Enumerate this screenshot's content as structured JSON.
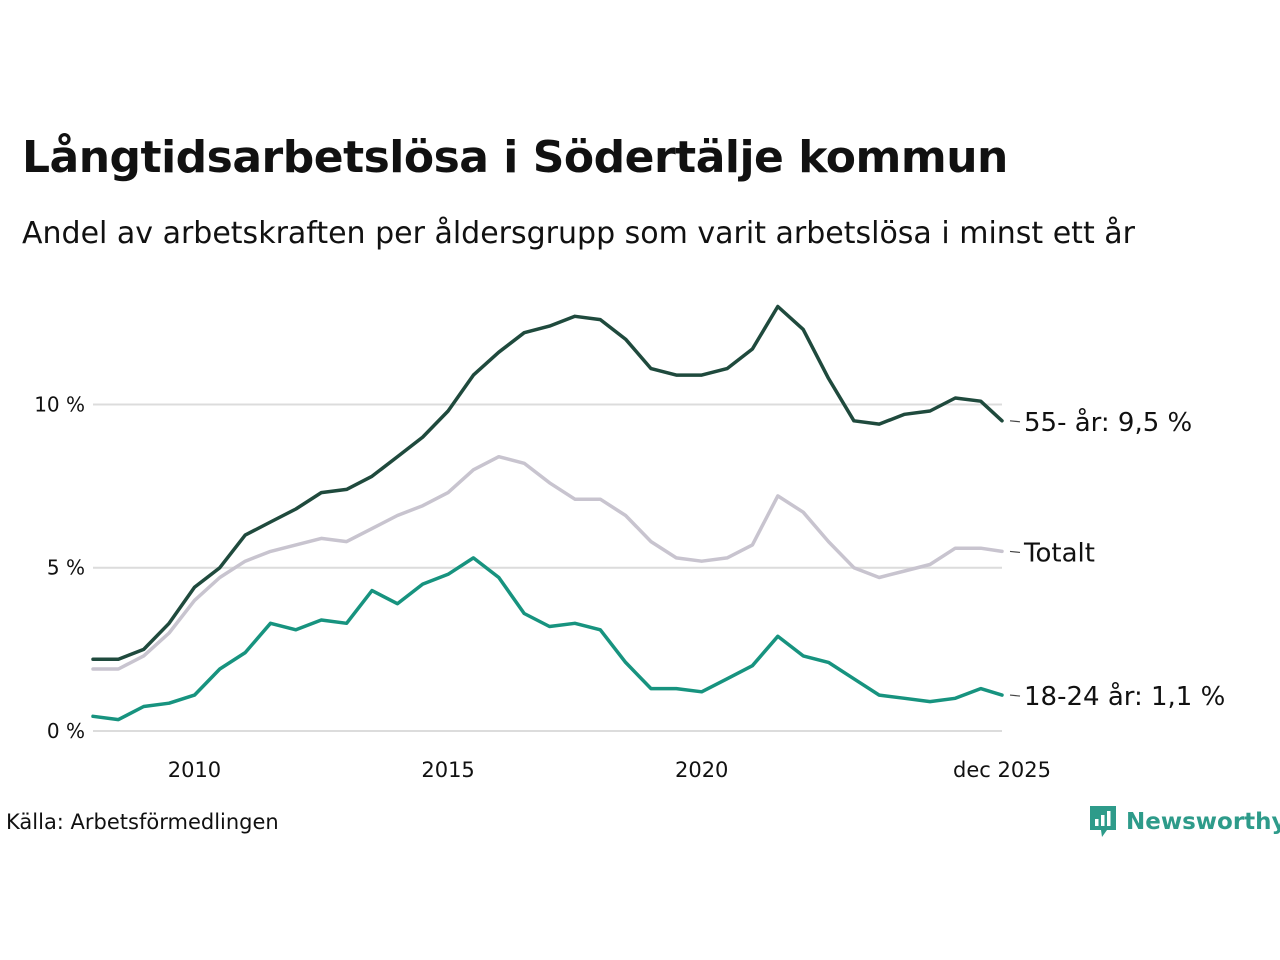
{
  "title": "Långtidsarbetslösa i Södertälje kommun",
  "subtitle": "Andel av arbetskraften per åldersgrupp som varit arbetslösa i minst ett år",
  "source": "Källa: Arbetsförmedlingen",
  "brand": "Newsworthy",
  "colors": {
    "brand": "#2e9b8a"
  },
  "chart_data": {
    "type": "line",
    "title": "Långtidsarbetslösa i Södertälje kommun",
    "xlabel": "",
    "ylabel": "",
    "xlim": [
      2008.0,
      2025.92
    ],
    "ylim": [
      0,
      13.2
    ],
    "y_ticks": [
      {
        "value": 0,
        "label": "0 %"
      },
      {
        "value": 5,
        "label": "5 %"
      },
      {
        "value": 10,
        "label": "10 %"
      }
    ],
    "x_ticks": [
      {
        "value": 2010,
        "label": "2010"
      },
      {
        "value": 2015,
        "label": "2015"
      },
      {
        "value": 2020,
        "label": "2020"
      },
      {
        "value": 2025.92,
        "label": "dec 2025"
      }
    ],
    "grid": "horizontal",
    "series": [
      {
        "name": "Totalt",
        "end_label": "Totalt",
        "color": "#c8c4cf",
        "x": [
          2008.0,
          2008.5,
          2009.0,
          2009.5,
          2010.0,
          2010.5,
          2011.0,
          2011.5,
          2012.0,
          2012.5,
          2013.0,
          2013.5,
          2014.0,
          2014.5,
          2015.0,
          2015.5,
          2016.0,
          2016.5,
          2017.0,
          2017.5,
          2018.0,
          2018.5,
          2019.0,
          2019.5,
          2020.0,
          2020.5,
          2021.0,
          2021.5,
          2022.0,
          2022.5,
          2023.0,
          2023.5,
          2024.0,
          2024.5,
          2025.0,
          2025.5,
          2025.92
        ],
        "values": [
          1.9,
          1.9,
          2.3,
          3.0,
          4.0,
          4.7,
          5.2,
          5.5,
          5.7,
          5.9,
          5.8,
          6.2,
          6.6,
          6.9,
          7.3,
          8.0,
          8.4,
          8.2,
          7.6,
          7.1,
          7.1,
          6.6,
          5.8,
          5.3,
          5.2,
          5.3,
          5.7,
          7.2,
          6.7,
          5.8,
          5.0,
          4.7,
          4.9,
          5.1,
          5.6,
          5.6,
          5.5
        ]
      },
      {
        "name": "55- år",
        "end_label": "55- år: 9,5 %",
        "color": "#1f4a3d",
        "x": [
          2008.0,
          2008.5,
          2009.0,
          2009.5,
          2010.0,
          2010.5,
          2011.0,
          2011.5,
          2012.0,
          2012.5,
          2013.0,
          2013.5,
          2014.0,
          2014.5,
          2015.0,
          2015.5,
          2016.0,
          2016.5,
          2017.0,
          2017.5,
          2018.0,
          2018.5,
          2019.0,
          2019.5,
          2020.0,
          2020.5,
          2021.0,
          2021.5,
          2022.0,
          2022.5,
          2023.0,
          2023.5,
          2024.0,
          2024.5,
          2025.0,
          2025.5,
          2025.92
        ],
        "values": [
          2.2,
          2.2,
          2.5,
          3.3,
          4.4,
          5.0,
          6.0,
          6.4,
          6.8,
          7.3,
          7.4,
          7.8,
          8.4,
          9.0,
          9.8,
          10.9,
          11.6,
          12.2,
          12.4,
          12.7,
          12.6,
          12.0,
          11.1,
          10.9,
          10.9,
          11.1,
          11.7,
          13.0,
          12.3,
          10.8,
          9.5,
          9.4,
          9.7,
          9.8,
          10.2,
          10.1,
          9.5
        ]
      },
      {
        "name": "18-24 år",
        "end_label": "18-24 år: 1,1 %",
        "color": "#17937f",
        "x": [
          2008.0,
          2008.5,
          2009.0,
          2009.5,
          2010.0,
          2010.5,
          2011.0,
          2011.5,
          2012.0,
          2012.5,
          2013.0,
          2013.5,
          2014.0,
          2014.5,
          2015.0,
          2015.5,
          2016.0,
          2016.5,
          2017.0,
          2017.5,
          2018.0,
          2018.5,
          2019.0,
          2019.5,
          2020.0,
          2020.5,
          2021.0,
          2021.5,
          2022.0,
          2022.5,
          2023.0,
          2023.5,
          2024.0,
          2024.5,
          2025.0,
          2025.5,
          2025.92
        ],
        "values": [
          0.45,
          0.35,
          0.75,
          0.85,
          1.1,
          1.9,
          2.4,
          3.3,
          3.1,
          3.4,
          3.3,
          4.3,
          3.9,
          4.5,
          4.8,
          5.3,
          4.7,
          3.6,
          3.2,
          3.3,
          3.1,
          2.1,
          1.3,
          1.3,
          1.2,
          1.6,
          2.0,
          2.9,
          2.3,
          2.1,
          1.6,
          1.1,
          1.0,
          0.9,
          1.0,
          1.3,
          1.1
        ]
      }
    ]
  }
}
